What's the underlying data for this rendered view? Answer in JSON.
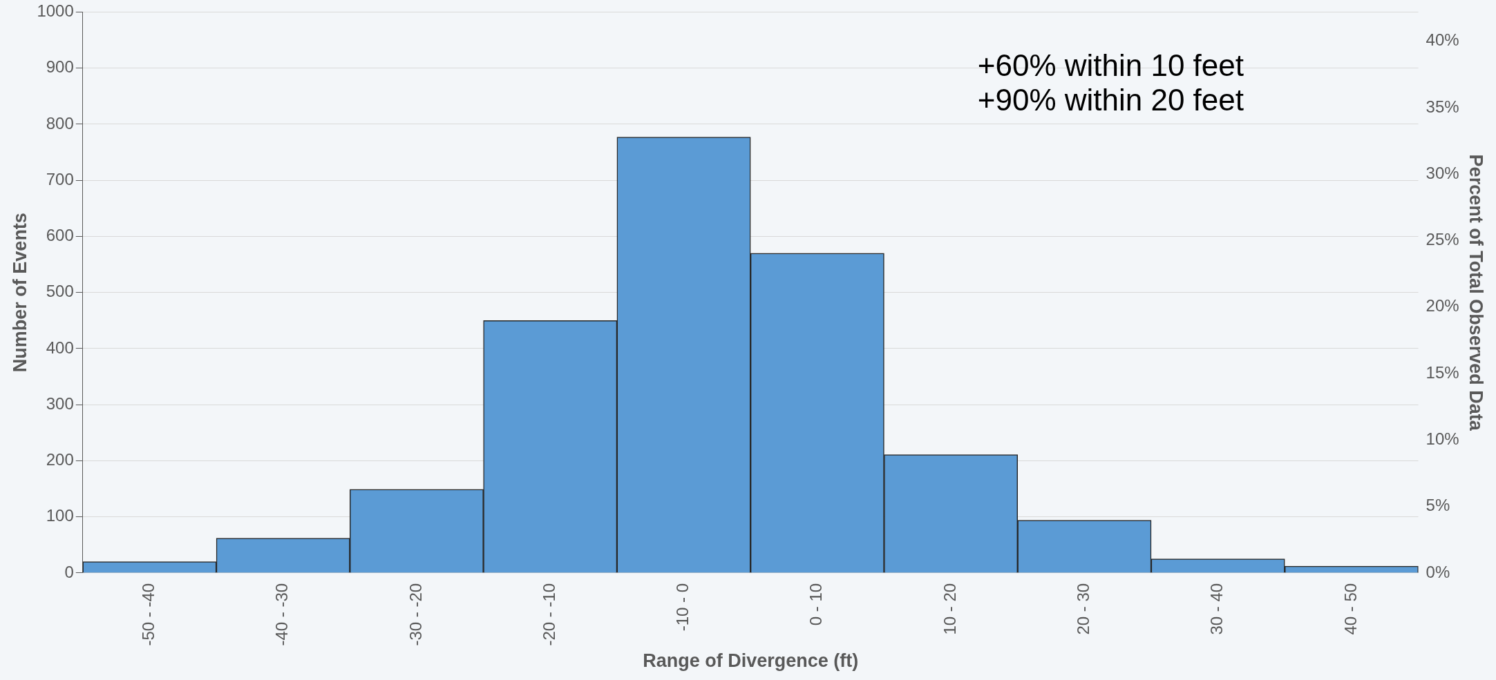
{
  "chart_data": {
    "type": "bar",
    "xlabel": "Range of Divergence (ft)",
    "ylabel": "Number of Events",
    "y2label": "Percent of Total Observed Data",
    "categories": [
      "-50 - -40",
      "-40 - -30",
      "-30 - -20",
      "-20 - -10",
      "-10 - 0",
      "0 - 10",
      "10 - 20",
      "20 - 30",
      "30 - 40",
      "40 - 50"
    ],
    "series": [
      {
        "color": "#5b9bd5",
        "values": [
          20,
          62,
          149,
          450,
          777,
          570,
          211,
          94,
          25,
          12
        ]
      }
    ],
    "ylim": [
      0,
      1000
    ],
    "yticks": [
      0,
      100,
      200,
      300,
      400,
      500,
      600,
      700,
      800,
      900,
      1000
    ],
    "y2lim": [
      0,
      42.2
    ],
    "y2ticks": [
      {
        "value": 0,
        "label": "0%"
      },
      {
        "value": 5,
        "label": "5%"
      },
      {
        "value": 10,
        "label": "10%"
      },
      {
        "value": 15,
        "label": "15%"
      },
      {
        "value": 20,
        "label": "20%"
      },
      {
        "value": 25,
        "label": "25%"
      },
      {
        "value": 30,
        "label": "30%"
      },
      {
        "value": 35,
        "label": "35%"
      },
      {
        "value": 40,
        "label": "40%"
      }
    ],
    "grid": "y",
    "legend": false,
    "annotations": [
      "+60% within 10 feet",
      "+90% within 20 feet"
    ]
  }
}
